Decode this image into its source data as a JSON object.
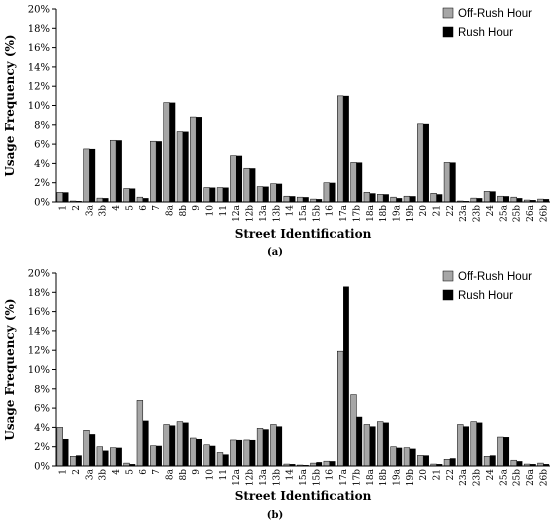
{
  "colors": {
    "off_rush": "#a6a6a6",
    "rush": "#000000",
    "axis": "#000000"
  },
  "chart_data": [
    {
      "type": "bar",
      "panel_label": "(a)",
      "xlabel": "Street Identification",
      "ylabel": "Usage Frequency (%)",
      "ylim": [
        0,
        20
      ],
      "yticks": [
        0,
        2,
        4,
        6,
        8,
        10,
        12,
        14,
        16,
        18,
        20
      ],
      "ytick_labels": [
        "0%",
        "2%",
        "4%",
        "6%",
        "8%",
        "10%",
        "12%",
        "14%",
        "16%",
        "18%",
        "20%"
      ],
      "grid": false,
      "legend_position": "top-right",
      "categories": [
        "1",
        "2",
        "3a",
        "3b",
        "4",
        "5",
        "6",
        "7",
        "8a",
        "8b",
        "9",
        "10",
        "11",
        "12a",
        "12b",
        "13a",
        "13b",
        "14",
        "15a",
        "15b",
        "16",
        "17a",
        "17b",
        "18a",
        "18b",
        "19a",
        "19b",
        "20",
        "21",
        "22",
        "23a",
        "23b",
        "24",
        "25a",
        "25b",
        "26a",
        "26b"
      ],
      "series": [
        {
          "name": "Off-Rush Hour",
          "color": "#a6a6a6",
          "values": [
            1.0,
            0.1,
            5.5,
            0.4,
            6.4,
            1.4,
            0.5,
            6.3,
            10.3,
            7.3,
            8.8,
            1.5,
            1.5,
            4.8,
            3.5,
            1.6,
            1.9,
            0.6,
            0.5,
            0.3,
            2.0,
            11.0,
            4.1,
            1.0,
            0.8,
            0.5,
            0.6,
            8.1,
            0.9,
            4.1,
            0.1,
            0.4,
            1.1,
            0.6,
            0.5,
            0.2,
            0.3
          ]
        },
        {
          "name": "Rush Hour",
          "color": "#000000",
          "values": [
            1.0,
            0.1,
            5.5,
            0.4,
            6.4,
            1.4,
            0.4,
            6.3,
            10.3,
            7.3,
            8.8,
            1.5,
            1.5,
            4.8,
            3.5,
            1.6,
            1.9,
            0.6,
            0.5,
            0.3,
            2.0,
            11.0,
            4.1,
            0.9,
            0.8,
            0.4,
            0.6,
            8.1,
            0.8,
            4.1,
            0.1,
            0.4,
            1.1,
            0.6,
            0.4,
            0.2,
            0.3
          ]
        }
      ]
    },
    {
      "type": "bar",
      "panel_label": "(b)",
      "xlabel": "Street Identification",
      "ylabel": "Usage Frequency (%)",
      "ylim": [
        0,
        20
      ],
      "yticks": [
        0,
        2,
        4,
        6,
        8,
        10,
        12,
        14,
        16,
        18,
        20
      ],
      "ytick_labels": [
        "0%",
        "2%",
        "4%",
        "6%",
        "8%",
        "10%",
        "12%",
        "14%",
        "16%",
        "18%",
        "20%"
      ],
      "grid": false,
      "legend_position": "top-right",
      "categories": [
        "1",
        "2",
        "3a",
        "3b",
        "4",
        "5",
        "6",
        "7",
        "8a",
        "8b",
        "9",
        "10",
        "11",
        "12a",
        "12b",
        "13a",
        "13b",
        "14",
        "15a",
        "15b",
        "16",
        "17a",
        "17b",
        "18a",
        "18b",
        "19a",
        "19b",
        "20",
        "21",
        "22",
        "23a",
        "23b",
        "24",
        "25a",
        "25b",
        "26a",
        "26b"
      ],
      "series": [
        {
          "name": "Off-Rush Hour",
          "color": "#a6a6a6",
          "values": [
            4.0,
            1.0,
            3.7,
            2.0,
            1.9,
            0.3,
            6.8,
            2.1,
            4.3,
            4.6,
            2.9,
            2.2,
            1.4,
            2.7,
            2.7,
            3.9,
            4.3,
            0.2,
            0.1,
            0.3,
            0.5,
            11.9,
            7.4,
            4.3,
            4.6,
            2.0,
            1.9,
            1.1,
            0.2,
            0.7,
            4.3,
            4.6,
            1.0,
            3.0,
            0.6,
            0.2,
            0.3
          ]
        },
        {
          "name": "Rush Hour",
          "color": "#000000",
          "values": [
            2.8,
            1.1,
            3.3,
            1.6,
            1.9,
            0.2,
            4.7,
            2.1,
            4.2,
            4.5,
            2.8,
            2.1,
            1.2,
            2.7,
            2.7,
            3.8,
            4.1,
            0.2,
            0.1,
            0.4,
            0.5,
            18.6,
            5.1,
            4.1,
            4.5,
            1.9,
            1.8,
            1.1,
            0.2,
            0.8,
            4.1,
            4.5,
            1.1,
            3.0,
            0.5,
            0.2,
            0.2
          ]
        }
      ]
    }
  ]
}
